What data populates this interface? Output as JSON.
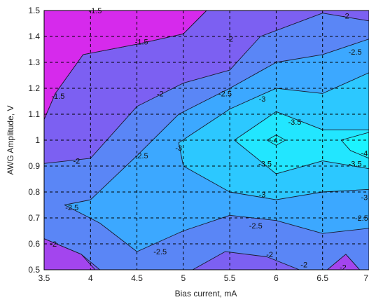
{
  "chart_data": {
    "type": "contour",
    "xlabel": "Bias current, mA",
    "ylabel": "AWG Amplitude, V",
    "xlim": [
      3.5,
      7
    ],
    "ylim": [
      0.5,
      1.5
    ],
    "x_ticks": [
      "3.5",
      "4",
      "4.5",
      "5",
      "5.5",
      "6",
      "6.5",
      "7"
    ],
    "y_ticks": [
      "0.5",
      "0.6",
      "0.7",
      "0.8",
      "0.9",
      "1",
      "1.1",
      "1.2",
      "1.3",
      "1.4",
      "1.5"
    ],
    "grid": true,
    "levels": [
      -4,
      -3.5,
      -3,
      -2.5,
      -2,
      -1.5
    ],
    "level_colors": {
      "below_-4": "#1CF3FF",
      "-4_to_-3.5": "#22E6FF",
      "-3.5_to_-3": "#2CC8FF",
      "-3_to_-2.5": "#3CA8FF",
      "-2.5_to_-2": "#5A86F6",
      "-2_to_-1.5": "#7C60F2",
      "-1.5_to_-1": "#A345EE",
      "above_-1": "#D62AEC"
    },
    "contour_labels": [
      {
        "text": "-1.5",
        "x": 4.05,
        "y": 1.5
      },
      {
        "text": "-1.5",
        "x": 4.55,
        "y": 1.38
      },
      {
        "text": "-1.5",
        "x": 3.65,
        "y": 1.17
      },
      {
        "text": "-2",
        "x": 6.75,
        "y": 1.48
      },
      {
        "text": "-2",
        "x": 5.5,
        "y": 1.39
      },
      {
        "text": "-2",
        "x": 4.75,
        "y": 1.18
      },
      {
        "text": "-2",
        "x": 3.85,
        "y": 0.92
      },
      {
        "text": "-2",
        "x": 3.6,
        "y": 0.6
      },
      {
        "text": "-2",
        "x": 5.93,
        "y": 0.56
      },
      {
        "text": "-2",
        "x": 6.3,
        "y": 0.52
      },
      {
        "text": "-2",
        "x": 6.72,
        "y": 0.51
      },
      {
        "text": "-2.5",
        "x": 6.85,
        "y": 1.34
      },
      {
        "text": "-2.5",
        "x": 5.45,
        "y": 1.18
      },
      {
        "text": "-2.5",
        "x": 4.55,
        "y": 0.94
      },
      {
        "text": "-2.5",
        "x": 3.8,
        "y": 0.74
      },
      {
        "text": "-2.5",
        "x": 4.75,
        "y": 0.57
      },
      {
        "text": "-2.5",
        "x": 5.78,
        "y": 0.67
      },
      {
        "text": "-2.5",
        "x": 6.92,
        "y": 0.7
      },
      {
        "text": "-3",
        "x": 5.85,
        "y": 1.16
      },
      {
        "text": "-3",
        "x": 4.95,
        "y": 0.97
      },
      {
        "text": "-3",
        "x": 5.85,
        "y": 0.79
      },
      {
        "text": "-3",
        "x": 6.95,
        "y": 0.78
      },
      {
        "text": "-3.5",
        "x": 6.2,
        "y": 1.07
      },
      {
        "text": "-3.5",
        "x": 5.88,
        "y": 0.91
      },
      {
        "text": "-3.5",
        "x": 6.85,
        "y": 0.91
      },
      {
        "text": "-4",
        "x": 5.98,
        "y": 1.0
      },
      {
        "text": "-4",
        "x": 6.95,
        "y": 0.95
      }
    ]
  }
}
